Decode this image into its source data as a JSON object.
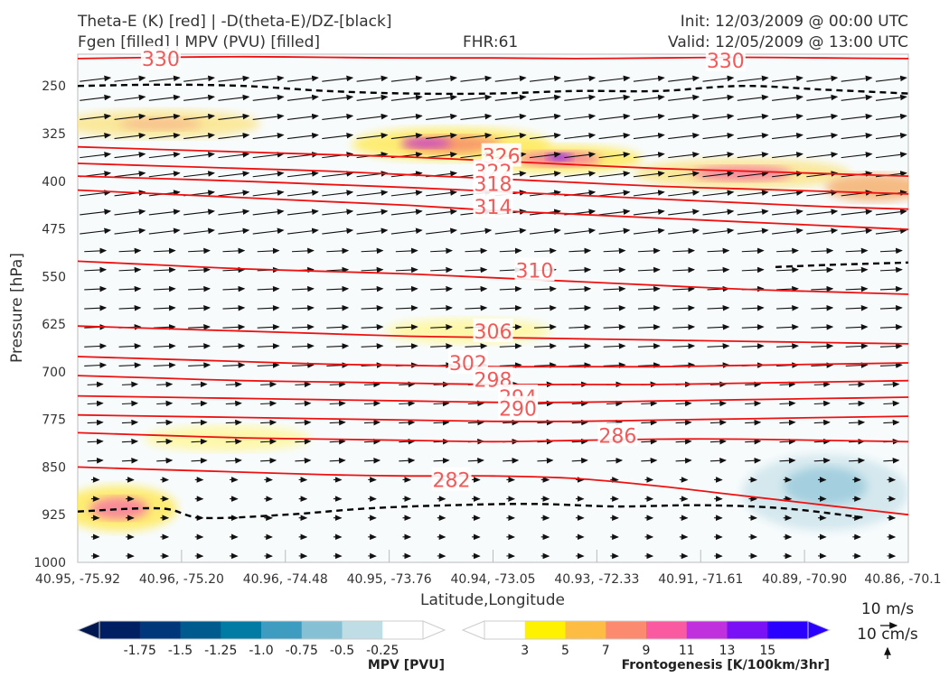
{
  "header": {
    "title_left_1": "Theta-E (K) [red] | -D(theta-E)/DZ-[black]",
    "title_left_2": "Fgen [filled] | MPV (PVU) [filled]",
    "fhr": "FHR:61",
    "init": "Init: 12/03/2009 @ 00:00 UTC",
    "valid": "Valid: 12/05/2009 @ 13:00 UTC"
  },
  "chart_data": {
    "type": "cross-section",
    "xlabel": "Latitude,Longitude",
    "ylabel": "Pressure [hPa]",
    "x_ticks": [
      "40.95, -75.92",
      "40.96, -75.20",
      "40.96, -74.48",
      "40.95, -73.76",
      "40.94, -73.05",
      "40.93, -72.33",
      "40.91, -71.61",
      "40.89, -70.90",
      "40.86, -70.1"
    ],
    "y_ticks": [
      250,
      325,
      400,
      475,
      550,
      625,
      700,
      775,
      850,
      925,
      1000
    ],
    "ylim": [
      1000,
      200
    ],
    "theta_e_contours": [
      {
        "value": 330,
        "label": "330",
        "points": [
          [
            0,
            207
          ],
          [
            0.1,
            205
          ],
          [
            0.2,
            204
          ],
          [
            0.3,
            205
          ],
          [
            0.4,
            206
          ],
          [
            0.5,
            206
          ],
          [
            0.6,
            207
          ],
          [
            0.7,
            206
          ],
          [
            0.8,
            205
          ],
          [
            0.9,
            206
          ],
          [
            1.0,
            207
          ]
        ]
      },
      {
        "value": 326,
        "label": "326",
        "points": [
          [
            0,
            346
          ],
          [
            0.1,
            350
          ],
          [
            0.2,
            354
          ],
          [
            0.3,
            358
          ],
          [
            0.4,
            362
          ],
          [
            0.5,
            368
          ],
          [
            0.6,
            374
          ],
          [
            0.7,
            380
          ],
          [
            0.8,
            384
          ],
          [
            0.9,
            388
          ],
          [
            1.0,
            392
          ]
        ]
      },
      {
        "value": 322,
        "label": "322",
        "points": [
          [
            0,
            372
          ],
          [
            0.1,
            376
          ],
          [
            0.2,
            380
          ],
          [
            0.3,
            384
          ],
          [
            0.4,
            390
          ],
          [
            0.5,
            396
          ],
          [
            0.6,
            402
          ],
          [
            0.7,
            408
          ],
          [
            0.8,
            412
          ],
          [
            0.9,
            416
          ],
          [
            1.0,
            420
          ]
        ]
      },
      {
        "value": 318,
        "label": "318",
        "points": [
          [
            0,
            392
          ],
          [
            0.1,
            396
          ],
          [
            0.2,
            400
          ],
          [
            0.3,
            405
          ],
          [
            0.4,
            410
          ],
          [
            0.5,
            416
          ],
          [
            0.6,
            422
          ],
          [
            0.7,
            428
          ],
          [
            0.8,
            434
          ],
          [
            0.9,
            440
          ],
          [
            1.0,
            444
          ]
        ]
      },
      {
        "value": 314,
        "label": "314",
        "points": [
          [
            0,
            414
          ],
          [
            0.1,
            420
          ],
          [
            0.2,
            426
          ],
          [
            0.3,
            432
          ],
          [
            0.4,
            438
          ],
          [
            0.5,
            446
          ],
          [
            0.6,
            452
          ],
          [
            0.7,
            458
          ],
          [
            0.8,
            464
          ],
          [
            0.9,
            470
          ],
          [
            1.0,
            476
          ]
        ]
      },
      {
        "value": 310,
        "label": "310",
        "points": [
          [
            0,
            526
          ],
          [
            0.1,
            532
          ],
          [
            0.2,
            538
          ],
          [
            0.3,
            542
          ],
          [
            0.4,
            546
          ],
          [
            0.5,
            552
          ],
          [
            0.6,
            558
          ],
          [
            0.7,
            564
          ],
          [
            0.8,
            570
          ],
          [
            0.9,
            574
          ],
          [
            1.0,
            578
          ]
        ]
      },
      {
        "value": 306,
        "label": "306",
        "points": [
          [
            0,
            628
          ],
          [
            0.1,
            632
          ],
          [
            0.2,
            636
          ],
          [
            0.3,
            640
          ],
          [
            0.4,
            644
          ],
          [
            0.5,
            646
          ],
          [
            0.6,
            648
          ],
          [
            0.7,
            650
          ],
          [
            0.8,
            652
          ],
          [
            0.9,
            654
          ],
          [
            1.0,
            656
          ]
        ]
      },
      {
        "value": 302,
        "label": "302",
        "points": [
          [
            0,
            676
          ],
          [
            0.1,
            680
          ],
          [
            0.2,
            684
          ],
          [
            0.3,
            688
          ],
          [
            0.4,
            690
          ],
          [
            0.5,
            692
          ],
          [
            0.6,
            692
          ],
          [
            0.7,
            692
          ],
          [
            0.8,
            690
          ],
          [
            0.9,
            688
          ],
          [
            1.0,
            686
          ]
        ]
      },
      {
        "value": 298,
        "label": "298",
        "points": [
          [
            0,
            706
          ],
          [
            0.1,
            710
          ],
          [
            0.2,
            714
          ],
          [
            0.3,
            716
          ],
          [
            0.4,
            718
          ],
          [
            0.5,
            720
          ],
          [
            0.6,
            720
          ],
          [
            0.7,
            720
          ],
          [
            0.8,
            718
          ],
          [
            0.9,
            716
          ],
          [
            1.0,
            714
          ]
        ]
      },
      {
        "value": 294,
        "label": "294",
        "points": [
          [
            0,
            738
          ],
          [
            0.1,
            740
          ],
          [
            0.2,
            742
          ],
          [
            0.3,
            744
          ],
          [
            0.4,
            746
          ],
          [
            0.5,
            748
          ],
          [
            0.6,
            748
          ],
          [
            0.7,
            746
          ],
          [
            0.8,
            744
          ],
          [
            0.9,
            742
          ],
          [
            1.0,
            740
          ]
        ]
      },
      {
        "value": 290,
        "label": "290",
        "points": [
          [
            0,
            768
          ],
          [
            0.1,
            770
          ],
          [
            0.2,
            772
          ],
          [
            0.3,
            774
          ],
          [
            0.4,
            776
          ],
          [
            0.5,
            778
          ],
          [
            0.6,
            778
          ],
          [
            0.7,
            776
          ],
          [
            0.8,
            774
          ],
          [
            0.9,
            772
          ],
          [
            1.0,
            770
          ]
        ]
      },
      {
        "value": 286,
        "label": "286",
        "points": [
          [
            0,
            796
          ],
          [
            0.1,
            800
          ],
          [
            0.2,
            804
          ],
          [
            0.3,
            806
          ],
          [
            0.4,
            808
          ],
          [
            0.5,
            810
          ],
          [
            0.6,
            808
          ],
          [
            0.7,
            806
          ],
          [
            0.8,
            806
          ],
          [
            0.9,
            808
          ],
          [
            1.0,
            810
          ]
        ]
      },
      {
        "value": 282,
        "label": "282",
        "points": [
          [
            0,
            850
          ],
          [
            0.1,
            854
          ],
          [
            0.2,
            858
          ],
          [
            0.3,
            862
          ],
          [
            0.4,
            864
          ],
          [
            0.5,
            864
          ],
          [
            0.6,
            868
          ],
          [
            0.7,
            880
          ],
          [
            0.8,
            895
          ],
          [
            0.9,
            910
          ],
          [
            1.0,
            925
          ]
        ]
      }
    ],
    "contour_label_positions": [
      [
        0.1,
        207
      ],
      [
        0.78,
        210
      ],
      [
        0.51,
        360
      ],
      [
        0.5,
        385
      ],
      [
        0.5,
        404
      ],
      [
        0.5,
        440
      ],
      [
        0.55,
        540
      ],
      [
        0.5,
        636
      ],
      [
        0.47,
        686
      ],
      [
        0.5,
        712
      ],
      [
        0.53,
        740
      ],
      [
        0.53,
        758
      ],
      [
        0.65,
        800
      ],
      [
        0.45,
        870
      ]
    ],
    "fill_blobs": [
      {
        "cx": 0.45,
        "cy": 342,
        "rx": 0.12,
        "ry": 26,
        "color": "#ffea5c"
      },
      {
        "cx": 0.45,
        "cy": 342,
        "rx": 0.06,
        "ry": 14,
        "color": "#f78d6b"
      },
      {
        "cx": 0.42,
        "cy": 340,
        "rx": 0.03,
        "ry": 8,
        "color": "#c240d6"
      },
      {
        "cx": 0.58,
        "cy": 365,
        "rx": 0.1,
        "ry": 22,
        "color": "#ffea5c"
      },
      {
        "cx": 0.58,
        "cy": 365,
        "rx": 0.05,
        "ry": 12,
        "color": "#f77aa0"
      },
      {
        "cx": 0.58,
        "cy": 362,
        "rx": 0.015,
        "ry": 6,
        "color": "#7018f5"
      },
      {
        "cx": 0.8,
        "cy": 388,
        "rx": 0.13,
        "ry": 24,
        "color": "#fbe58a"
      },
      {
        "cx": 0.8,
        "cy": 388,
        "rx": 0.06,
        "ry": 12,
        "color": "#f77aa0"
      },
      {
        "cx": 0.96,
        "cy": 410,
        "rx": 0.06,
        "ry": 22,
        "color": "#f5b070"
      },
      {
        "cx": 0.1,
        "cy": 310,
        "rx": 0.12,
        "ry": 22,
        "color": "#fbe58a"
      },
      {
        "cx": 0.1,
        "cy": 310,
        "rx": 0.05,
        "ry": 10,
        "color": "#f7bb8c"
      },
      {
        "cx": 0.05,
        "cy": 915,
        "rx": 0.07,
        "ry": 36,
        "color": "#ffea5c"
      },
      {
        "cx": 0.05,
        "cy": 915,
        "rx": 0.035,
        "ry": 18,
        "color": "#f77aa0"
      },
      {
        "cx": 0.18,
        "cy": 805,
        "rx": 0.1,
        "ry": 20,
        "color": "#fff79c"
      },
      {
        "cx": 0.47,
        "cy": 636,
        "rx": 0.1,
        "ry": 20,
        "color": "#fff79c"
      },
      {
        "cx": 0.9,
        "cy": 890,
        "rx": 0.1,
        "ry": 60,
        "color": "#cfe5ec"
      },
      {
        "cx": 0.9,
        "cy": 880,
        "rx": 0.05,
        "ry": 30,
        "color": "#9ccbdc"
      }
    ],
    "wind_rows_hpa": [
      240,
      270,
      300,
      330,
      360,
      390,
      420,
      450,
      480,
      510,
      540,
      570,
      600,
      630,
      660,
      690,
      720,
      750,
      780,
      810,
      840,
      870,
      900,
      930,
      960,
      990
    ],
    "wind_cols": 24,
    "dashed_contours": [
      {
        "points": [
          [
            0,
            250
          ],
          [
            0.1,
            248
          ],
          [
            0.2,
            250
          ],
          [
            0.3,
            258
          ],
          [
            0.4,
            262
          ],
          [
            0.5,
            262
          ],
          [
            0.6,
            258
          ],
          [
            0.7,
            258
          ],
          [
            0.8,
            250
          ],
          [
            0.9,
            256
          ],
          [
            1.0,
            262
          ]
        ]
      },
      {
        "points": [
          [
            0.0,
            920
          ],
          [
            0.1,
            915
          ],
          [
            0.15,
            930
          ],
          [
            0.25,
            925
          ],
          [
            0.35,
            915
          ],
          [
            0.45,
            910
          ],
          [
            0.55,
            908
          ],
          [
            0.65,
            912
          ],
          [
            0.75,
            910
          ],
          [
            0.85,
            915
          ],
          [
            0.95,
            930
          ]
        ]
      },
      {
        "points": [
          [
            0.84,
            535
          ],
          [
            0.9,
            532
          ],
          [
            1.0,
            528
          ]
        ]
      }
    ]
  },
  "colorbar_mpv": {
    "title": "MPV [PVU]",
    "colors": [
      "#001f63",
      "#00367a",
      "#005a8e",
      "#007ba4",
      "#3e9cc0",
      "#85c0d4",
      "#bfdde5",
      "#ffffff"
    ],
    "tick_labels": [
      "-1.75",
      "-1.5",
      "-1.25",
      "-1.0",
      "-0.75",
      "-0.5",
      "-0.25"
    ]
  },
  "colorbar_fgen": {
    "title": "Frontogenesis [K/100km/3hr]",
    "colors": [
      "#ffffff",
      "#fff200",
      "#fcbd42",
      "#fb8a6e",
      "#fa5aa0",
      "#c030dc",
      "#7a10f5",
      "#2a00ff"
    ],
    "tick_labels": [
      "3",
      "5",
      "7",
      "9",
      "11",
      "13",
      "15"
    ]
  },
  "reference_vectors": {
    "label_1": "10 m/s",
    "label_2": "10 cm/s"
  }
}
